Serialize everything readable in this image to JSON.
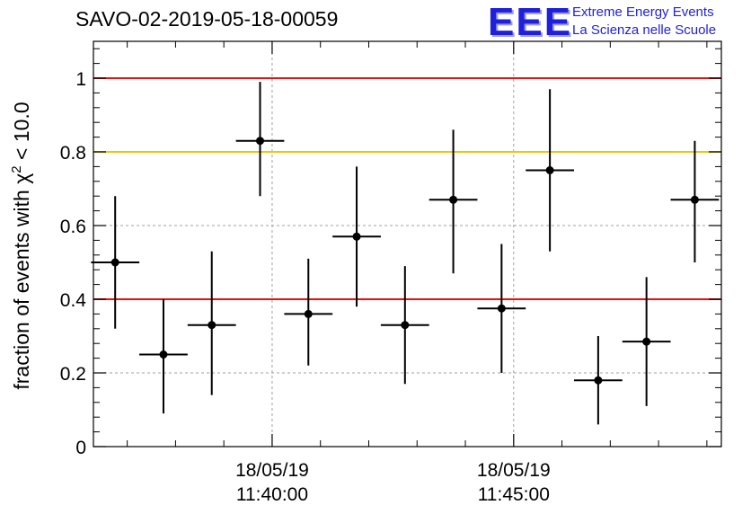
{
  "header": {
    "title": "SAVO-02-2019-05-18-00059",
    "logo_mark": "EEE",
    "logo_line1": "Extreme Energy Events",
    "logo_line2": "La Scienza nelle Scuole"
  },
  "colors": {
    "red_line": "#e8130f",
    "orange_line": "#f5c400",
    "grid": "#a0a0a0",
    "marker": "#000000",
    "logo": "#1f1fdc"
  },
  "chart_data": {
    "type": "scatter",
    "title": "SAVO-02-2019-05-18-00059",
    "xlabel": "",
    "ylabel": "fraction of events with χ² < 10.0",
    "ylabel_parts": {
      "prefix": "fraction of events with ",
      "symbol": "χ",
      "sup": "2",
      "suffix": " < 10.0"
    },
    "xlim_minutes": [
      -3.7,
      9.3
    ],
    "ylim": [
      0,
      1.1
    ],
    "grid": true,
    "x_unit": "minutes relative to 18/05/19 11:40:00",
    "x_ticks": [
      {
        "value": 0,
        "label_date": "18/05/19",
        "label_time": "11:40:00"
      },
      {
        "value": 5,
        "label_date": "18/05/19",
        "label_time": "11:45:00"
      }
    ],
    "y_ticks": [
      {
        "value": 0,
        "label": "0"
      },
      {
        "value": 0.2,
        "label": "0.2"
      },
      {
        "value": 0.4,
        "label": "0.4"
      },
      {
        "value": 0.6,
        "label": "0.6"
      },
      {
        "value": 0.8,
        "label": "0.8"
      },
      {
        "value": 1.0,
        "label": "1"
      }
    ],
    "reference_lines": [
      {
        "y": 1.0,
        "color": "red"
      },
      {
        "y": 0.8,
        "color": "orange"
      },
      {
        "y": 0.4,
        "color": "red"
      }
    ],
    "points": [
      {
        "x": -3.25,
        "xerr": 0.5,
        "y": 0.5,
        "ylo": 0.32,
        "yhi": 0.68
      },
      {
        "x": -2.25,
        "xerr": 0.5,
        "y": 0.25,
        "ylo": 0.09,
        "yhi": 0.4
      },
      {
        "x": -1.25,
        "xerr": 0.5,
        "y": 0.33,
        "ylo": 0.14,
        "yhi": 0.53
      },
      {
        "x": -0.25,
        "xerr": 0.5,
        "y": 0.83,
        "ylo": 0.68,
        "yhi": 0.99
      },
      {
        "x": 0.75,
        "xerr": 0.5,
        "y": 0.36,
        "ylo": 0.22,
        "yhi": 0.51
      },
      {
        "x": 1.75,
        "xerr": 0.5,
        "y": 0.57,
        "ylo": 0.38,
        "yhi": 0.76
      },
      {
        "x": 2.75,
        "xerr": 0.5,
        "y": 0.33,
        "ylo": 0.17,
        "yhi": 0.49
      },
      {
        "x": 3.75,
        "xerr": 0.5,
        "y": 0.67,
        "ylo": 0.47,
        "yhi": 0.86
      },
      {
        "x": 4.75,
        "xerr": 0.5,
        "y": 0.375,
        "ylo": 0.2,
        "yhi": 0.55
      },
      {
        "x": 5.75,
        "xerr": 0.5,
        "y": 0.75,
        "ylo": 0.53,
        "yhi": 0.97
      },
      {
        "x": 6.75,
        "xerr": 0.5,
        "y": 0.18,
        "ylo": 0.06,
        "yhi": 0.3
      },
      {
        "x": 7.75,
        "xerr": 0.5,
        "y": 0.285,
        "ylo": 0.11,
        "yhi": 0.46
      },
      {
        "x": 8.75,
        "xerr": 0.5,
        "y": 0.67,
        "ylo": 0.5,
        "yhi": 0.83
      }
    ]
  }
}
